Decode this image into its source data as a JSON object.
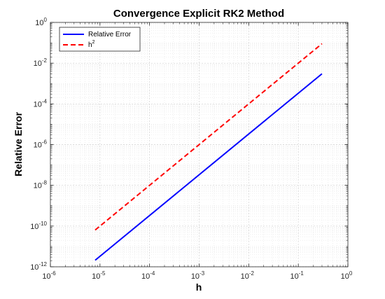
{
  "chart_data": {
    "type": "line",
    "title": "Convergence Explicit RK2 Method",
    "xlabel": "h",
    "ylabel": "Relative Error",
    "x_scale": "log",
    "y_scale": "log",
    "xlim": [
      1e-06,
      1
    ],
    "ylim": [
      1e-12,
      1
    ],
    "x_ticks": [
      {
        "base": "10",
        "exp": "-6",
        "value": 1e-06
      },
      {
        "base": "10",
        "exp": "-5",
        "value": 1e-05
      },
      {
        "base": "10",
        "exp": "-4",
        "value": 0.0001
      },
      {
        "base": "10",
        "exp": "-3",
        "value": 0.001
      },
      {
        "base": "10",
        "exp": "-2",
        "value": 0.01
      },
      {
        "base": "10",
        "exp": "-1",
        "value": 0.1
      },
      {
        "base": "10",
        "exp": "0",
        "value": 1
      }
    ],
    "y_ticks": [
      {
        "base": "10",
        "exp": "-12",
        "value": 1e-12
      },
      {
        "base": "10",
        "exp": "-10",
        "value": 1e-10
      },
      {
        "base": "10",
        "exp": "-8",
        "value": 1e-08
      },
      {
        "base": "10",
        "exp": "-6",
        "value": 1e-06
      },
      {
        "base": "10",
        "exp": "-4",
        "value": 0.0001
      },
      {
        "base": "10",
        "exp": "-2",
        "value": 0.01
      },
      {
        "base": "10",
        "exp": "0",
        "value": 1
      }
    ],
    "grid": true,
    "minor_grid": true,
    "legend_position": "top-left",
    "series": [
      {
        "name": "Relative Error",
        "legend_base": "Relative Error",
        "legend_sup": "",
        "color": "#0000ff",
        "dash": "solid",
        "x": [
          8e-06,
          0.3
        ],
        "y": [
          2.1e-12,
          0.003
        ]
      },
      {
        "name": "h^2",
        "legend_base": "h",
        "legend_sup": "2",
        "color": "#ff0000",
        "dash": "dashed",
        "x": [
          8e-06,
          0.3
        ],
        "y": [
          6.4e-11,
          0.09
        ]
      }
    ]
  }
}
